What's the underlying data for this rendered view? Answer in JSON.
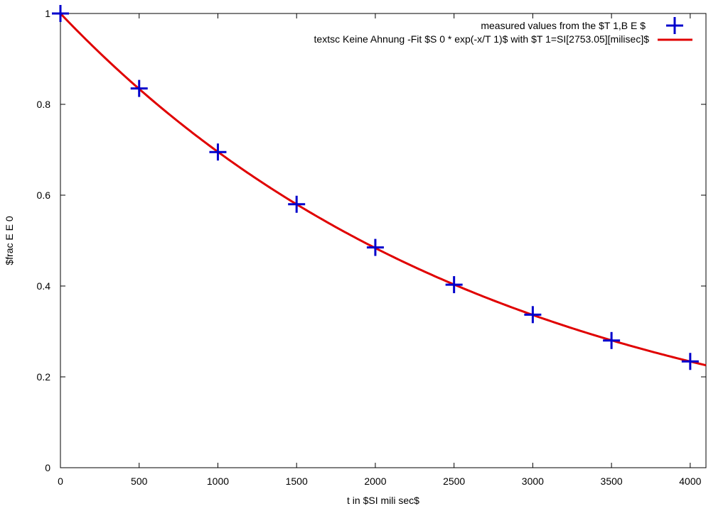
{
  "chart_data": {
    "type": "scatter",
    "title": "",
    "xlabel": "t in $SI mili sec$",
    "ylabel": "$frac E E 0",
    "xlim": [
      0,
      4100
    ],
    "ylim": [
      0,
      1
    ],
    "grid": false,
    "legend_position": "top-right",
    "x_ticks": [
      0,
      500,
      1000,
      1500,
      2000,
      2500,
      3000,
      3500,
      4000
    ],
    "x_tick_labels": [
      "0",
      "500",
      "1000",
      "1500",
      "2000",
      "2500",
      "3000",
      "3500",
      "4000"
    ],
    "y_ticks": [
      0,
      0.2,
      0.4,
      0.6,
      0.8,
      1
    ],
    "y_tick_labels": [
      "0",
      "0.2",
      "0.4",
      "0.6",
      "0.8",
      "1"
    ],
    "series": [
      {
        "name": "measured values from the $T 1,B E $",
        "kind": "points",
        "marker": "plus",
        "color": "#0000cc",
        "x": [
          0,
          500,
          1000,
          1500,
          2000,
          2500,
          3000,
          3500,
          4000
        ],
        "y": [
          1.0,
          0.835,
          0.695,
          0.58,
          0.485,
          0.403,
          0.337,
          0.28,
          0.234
        ]
      },
      {
        "name": "textsc Keine Ahnung -Fit $S 0 * exp(-x/T 1)$ with $T 1=SI[2753.05][milisec]$",
        "kind": "fit-line",
        "color": "#e00000",
        "S0": 1.0,
        "T1": 2753.05
      }
    ]
  }
}
